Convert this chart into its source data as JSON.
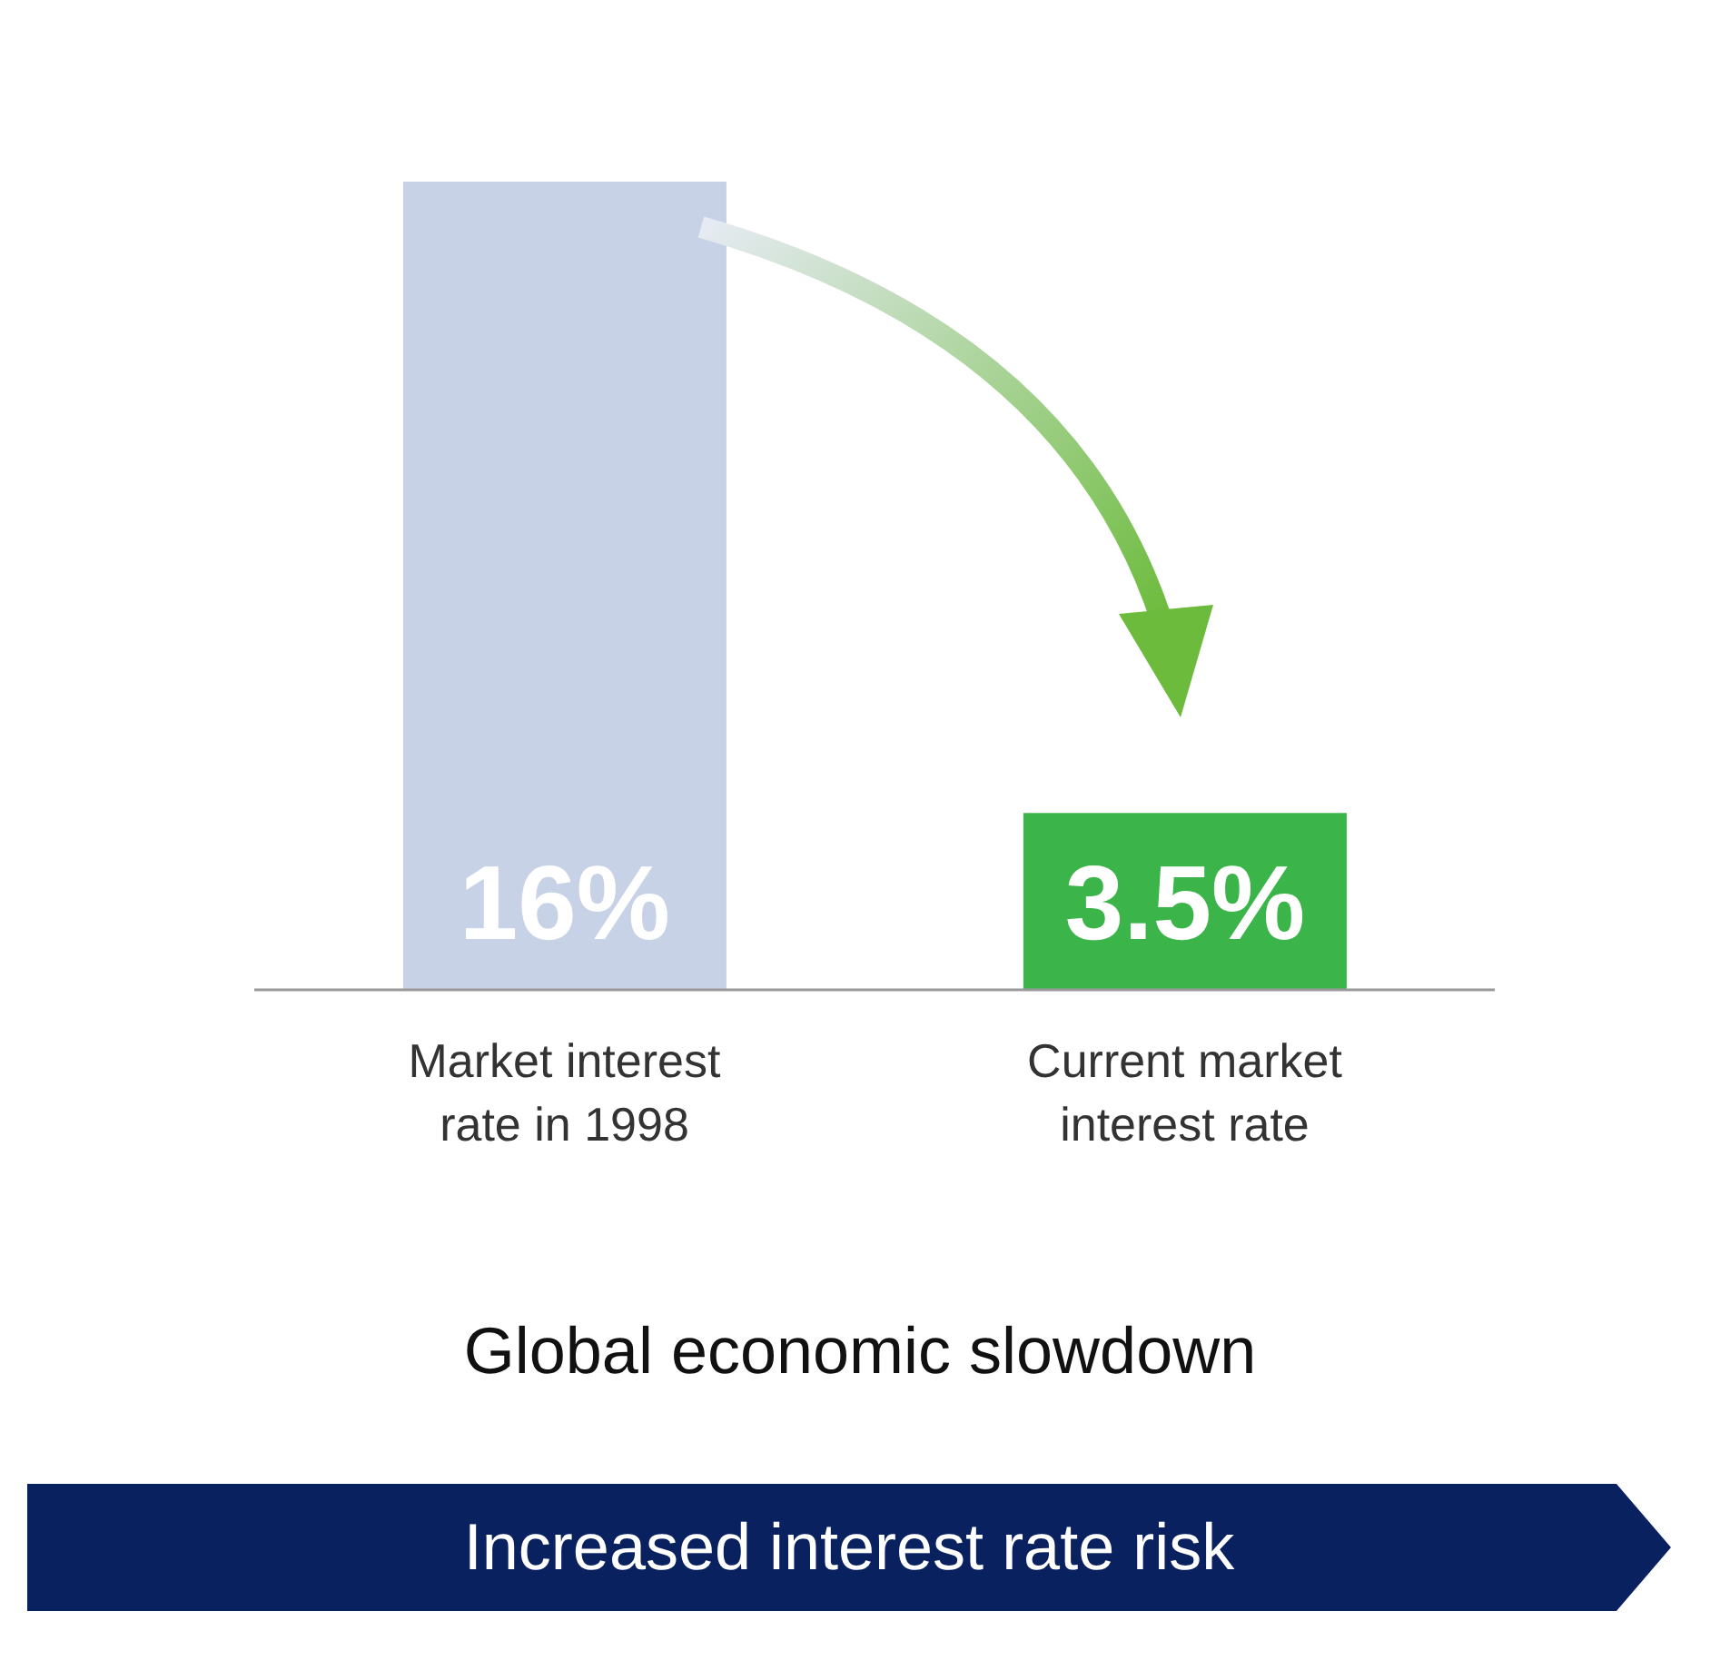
{
  "chart_data": {
    "type": "bar",
    "categories": [
      "Market interest rate in 1998",
      "Current market interest rate"
    ],
    "values": [
      16,
      3.5
    ],
    "colors": [
      "#c8d2e6",
      "#3bb54a"
    ],
    "value_labels": [
      "16%",
      "3.5%"
    ],
    "annotations": [
      "Global economic slowdown",
      "Increased interest rate risk"
    ],
    "grid": false,
    "legend": false
  }
}
